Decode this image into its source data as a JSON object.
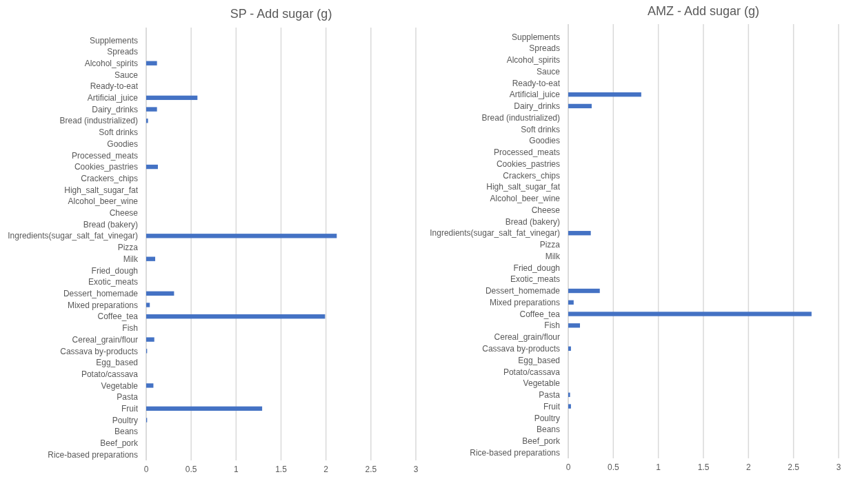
{
  "chart_data": [
    {
      "type": "bar",
      "orientation": "horizontal",
      "title": "SP - Add sugar (g)",
      "categories": [
        "Supplements",
        "Spreads",
        "Alcohol_spirits",
        "Sauce",
        "Ready-to-eat",
        "Artificial_juice",
        "Dairy_drinks",
        "Bread (industrialized)",
        "Soft drinks",
        "Goodies",
        "Processed_meats",
        "Cookies_pastries",
        "Crackers_chips",
        "High_salt_sugar_fat",
        "Alcohol_beer_wine",
        "Cheese",
        "Bread (bakery)",
        "Ingredients(sugar_salt_fat_vinegar)",
        "Pizza",
        "Milk",
        "Fried_dough",
        "Exotic_meats",
        "Dessert_homemade",
        "Mixed preparations",
        "Coffee_tea",
        "Fish",
        "Cereal_grain/flour",
        "Cassava by-products",
        "Egg_based",
        "Potato/cassava",
        "Vegetable",
        "Pasta",
        "Fruit",
        "Poultry",
        "Beans",
        "Beef_pork",
        "Rice-based preparations"
      ],
      "values": [
        0,
        0,
        0.12,
        0,
        0,
        0.57,
        0.12,
        0.02,
        0,
        0,
        0,
        0.13,
        0,
        0,
        0,
        0,
        0,
        2.12,
        0,
        0.1,
        0,
        0,
        0.31,
        0.04,
        1.99,
        0,
        0.09,
        0.01,
        0,
        0,
        0.08,
        0,
        1.29,
        0.01,
        0,
        0,
        0
      ],
      "color": "#4472c4",
      "xlim": [
        0,
        3
      ],
      "xticks": [
        0,
        0.5,
        1,
        1.5,
        2,
        2.5,
        3
      ],
      "grid": "x"
    },
    {
      "type": "bar",
      "orientation": "horizontal",
      "title": "AMZ - Add sugar (g)",
      "categories": [
        "Supplements",
        "Spreads",
        "Alcohol_spirits",
        "Sauce",
        "Ready-to-eat",
        "Artificial_juice",
        "Dairy_drinks",
        "Bread (industrialized)",
        "Soft drinks",
        "Goodies",
        "Processed_meats",
        "Cookies_pastries",
        "Crackers_chips",
        "High_salt_sugar_fat",
        "Alcohol_beer_wine",
        "Cheese",
        "Bread (bakery)",
        "Ingredients(sugar_salt_fat_vinegar)",
        "Pizza",
        "Milk",
        "Fried_dough",
        "Exotic_meats",
        "Dessert_homemade",
        "Mixed preparations",
        "Coffee_tea",
        "Fish",
        "Cereal_grain/flour",
        "Cassava by-products",
        "Egg_based",
        "Potato/cassava",
        "Vegetable",
        "Pasta",
        "Fruit",
        "Poultry",
        "Beans",
        "Beef_pork",
        "Rice-based preparations"
      ],
      "values": [
        0,
        0,
        0,
        0,
        0,
        0.81,
        0.26,
        0,
        0,
        0,
        0,
        0,
        0,
        0,
        0,
        0,
        0,
        0.25,
        0,
        0,
        0,
        0,
        0.35,
        0.06,
        2.7,
        0.13,
        0,
        0.03,
        0,
        0,
        0,
        0.02,
        0.03,
        0,
        0,
        0,
        0
      ],
      "color": "#4472c4",
      "xlim": [
        0,
        3
      ],
      "xticks": [
        0,
        0.5,
        1,
        1.5,
        2,
        2.5,
        3
      ],
      "grid": "x"
    }
  ]
}
